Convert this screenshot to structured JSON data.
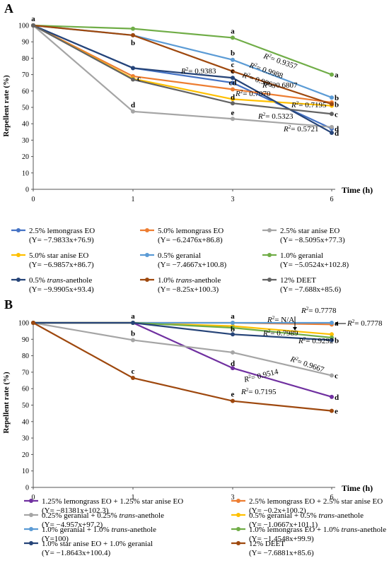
{
  "figure": {
    "panels": [
      {
        "panel_label": "A",
        "chart_data": {
          "type": "line",
          "ylabel": "Repellent rate (%)",
          "xlabel": "Time (h)",
          "x": [
            0,
            1,
            3,
            6
          ],
          "x_tick_labels": [
            "0",
            "1",
            "3",
            "6"
          ],
          "y_tick_labels": [
            "0",
            "10",
            "20",
            "30",
            "40",
            "50",
            "60",
            "70",
            "80",
            "90",
            "100"
          ],
          "ylim": [
            0,
            100
          ],
          "grid": false,
          "legend_position": "bottom",
          "series": [
            {
              "name": "2.5% lemongrass EO",
              "equation": "(Y= −7.9833x+76.9)",
              "color": "#4472c4",
              "values": [
                100,
                74,
                65,
                37
              ],
              "letters": [
                "",
                "",
                "",
                "d"
              ]
            },
            {
              "name": "5.0% lemongrass EO",
              "equation": "(Y= −6.2476x+86.8)",
              "color": "#ed7d31",
              "values": [
                100,
                69,
                61,
                53
              ],
              "letters": [
                "",
                "",
                "cd",
                ""
              ]
            },
            {
              "name": "2.5% star anise EO",
              "equation": "(Y= −8.5095x+77.3)",
              "color": "#a5a5a5",
              "values": [
                100,
                47.5,
                43,
                38
              ],
              "letters": [
                "",
                "d",
                "e",
                ""
              ]
            },
            {
              "name": "5.0% star anise EO",
              "equation": "(Y= −6.9857x+86.7)",
              "color": "#ffc000",
              "values": [
                100,
                67.5,
                55,
                51
              ],
              "letters": [
                "",
                "",
                "",
                ""
              ]
            },
            {
              "name": "0.5% geranial",
              "equation": "(Y= −7.4667x+100.8)",
              "color": "#5b9bd5",
              "values": [
                100,
                94,
                79,
                56
              ],
              "letters": [
                "",
                "",
                "b",
                "b"
              ]
            },
            {
              "name": "1.0% geranial",
              "equation": "(Y= −5.0524x+102.8)",
              "color": "#70ad47",
              "values": [
                100,
                98,
                92.5,
                70
              ],
              "letters": [
                "a",
                "",
                "a",
                "a"
              ]
            },
            {
              "name": "0.5% trans-anethole",
              "equation": "(Y= −9.9905x+93.4)",
              "color": "#264478",
              "values": [
                100,
                74,
                68,
                34.5
              ],
              "letters": [
                "",
                "",
                "c",
                "d"
              ]
            },
            {
              "name": "1.0% trans-anethole",
              "equation": "(Y= −8.25x+100.3)",
              "color": "#9e480e",
              "values": [
                100,
                94,
                72,
                52
              ],
              "letters": [
                "",
                "b",
                "c",
                "b"
              ]
            },
            {
              "name": "12% DEET",
              "equation": "(Y= −7.688x+85.6)",
              "color": "#636363",
              "values": [
                100,
                67,
                52.5,
                46
              ],
              "letters": [
                "",
                "c",
                "d",
                "c"
              ]
            }
          ],
          "annotations": [
            "R²= 0.9357",
            "R²= 0.9988",
            "R²= 0.9383",
            "R²= 0.9863",
            "R²= 0.6807",
            "R²= 0.7070",
            "R²= 0.7195",
            "R²= 0.5323",
            "R²= 0.5721"
          ]
        }
      },
      {
        "panel_label": "B",
        "chart_data": {
          "type": "line",
          "ylabel": "Repellent rate (%)",
          "xlabel": "Time (h)",
          "x": [
            0,
            1,
            3,
            6
          ],
          "x_tick_labels": [
            "0",
            "1",
            "3",
            "6"
          ],
          "y_tick_labels": [
            "0",
            "10",
            "20",
            "30",
            "40",
            "50",
            "60",
            "70",
            "80",
            "90",
            "100"
          ],
          "ylim": [
            0,
            100
          ],
          "grid": false,
          "legend_position": "bottom",
          "series": [
            {
              "name": "1.25% lemongrass EO + 1.25% star anise EO",
              "equation": "(Y= −81381x+102.3)",
              "color": "#7030a0",
              "values": [
                100,
                100,
                72.5,
                55
              ],
              "letters": [
                "",
                "a",
                "d",
                "d"
              ]
            },
            {
              "name": "2.5% lemongrass EO + 2.5% star anise EO",
              "equation": "(Y= −0.2x+100.2)",
              "color": "#ed7d31",
              "values": [
                100,
                100,
                100,
                99
              ],
              "letters": [
                "",
                "",
                "",
                ""
              ]
            },
            {
              "name": "0.25% geranial + 0.25% trans-anethole",
              "equation": "(Y= −4.957x+97.2)",
              "color": "#a5a5a5",
              "values": [
                100,
                89.5,
                82,
                68
              ],
              "letters": [
                "",
                "b",
                "",
                "c"
              ]
            },
            {
              "name": "0.5% geranial + 0.5% trans-anethole",
              "equation": "(Y= −1.0667x+101.1)",
              "color": "#ffc000",
              "values": [
                100,
                100,
                98,
                93
              ],
              "letters": [
                "",
                "",
                "",
                ""
              ]
            },
            {
              "name": "1.0% geranial + 1.0% trans-anethole",
              "equation": "(Y=100)",
              "color": "#5b9bd5",
              "values": [
                100,
                100,
                100,
                100
              ],
              "letters": [
                "",
                "",
                "a",
                "a"
              ]
            },
            {
              "name": "1.0% lemongrass EO + 1.0% trans-anethole",
              "equation": "(Y= −1.4548x+99.9)",
              "color": "#70ad47",
              "values": [
                100,
                100,
                97,
                91
              ],
              "letters": [
                "",
                "",
                "",
                ""
              ]
            },
            {
              "name": "1.0% star anise EO + 1.0% geranial",
              "equation": "(Y= −1.8643x+100.4)",
              "color": "#264478",
              "values": [
                100,
                100,
                93,
                89.5
              ],
              "letters": [
                "",
                "",
                "b",
                "b"
              ]
            },
            {
              "name": "12% DEET",
              "equation": "(Y= −7.6881x+85.6)",
              "color": "#9e480e",
              "values": [
                100,
                66.5,
                52.5,
                46.5
              ],
              "letters": [
                "",
                "c",
                "e",
                "e"
              ]
            }
          ],
          "annotations": [
            "R²= 0.7778",
            "R²= N/A",
            "R²= 0.7778",
            "R²= 0.7989",
            "R²= 0.9292",
            "R²= 0.9667",
            "R²= 0.9514",
            "R²= 0.7195"
          ]
        }
      }
    ]
  }
}
